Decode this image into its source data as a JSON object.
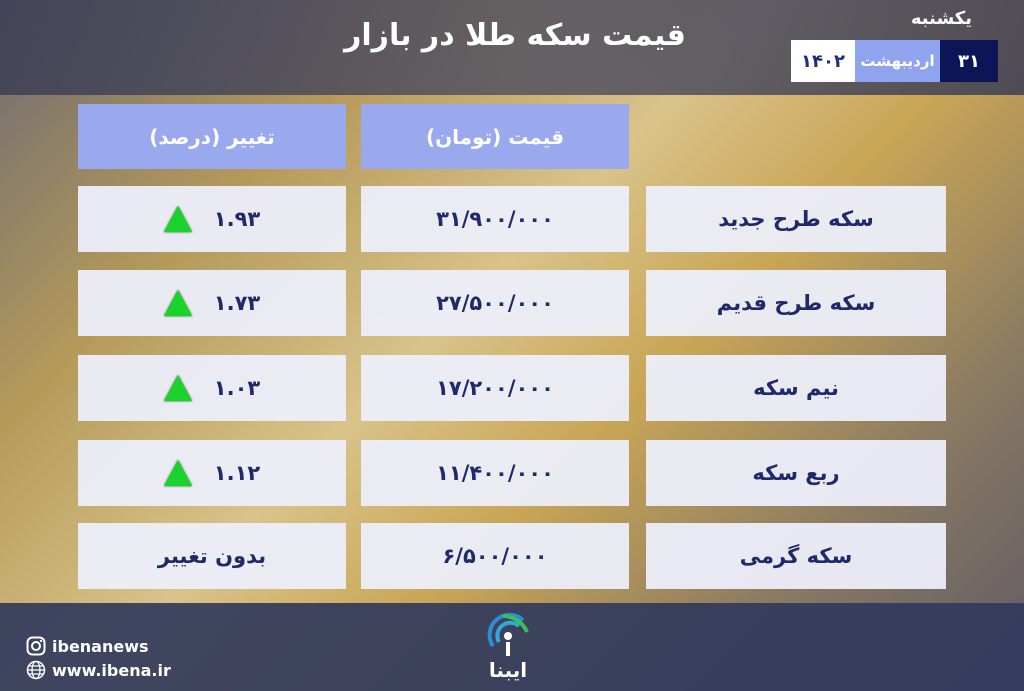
{
  "header": {
    "title": "قیمت سکه طلا در بازار",
    "weekday": "یکشنبه",
    "date": {
      "day": "۳۱",
      "month": "اردیبهشت",
      "year": "۱۴۰۲"
    }
  },
  "table": {
    "columns": {
      "price": "قیمت (تومان)",
      "change": "تغییر (درصد)"
    },
    "rows": [
      {
        "name": "سکه طرح جدید",
        "price": "۳۱/۹۰۰/۰۰۰",
        "change": "۱.۹۳",
        "trend": "up"
      },
      {
        "name": "سکه طرح قدیم",
        "price": "۲۷/۵۰۰/۰۰۰",
        "change": "۱.۷۳",
        "trend": "up"
      },
      {
        "name": "نیم سکه",
        "price": "۱۷/۲۰۰/۰۰۰",
        "change": "۱.۰۳",
        "trend": "up"
      },
      {
        "name": "ربع سکه",
        "price": "۱۱/۴۰۰/۰۰۰",
        "change": "۱.۱۲",
        "trend": "up"
      },
      {
        "name": "سکه گرمی",
        "price": "۶/۵۰۰/۰۰۰",
        "change": "بدون تغییر",
        "trend": "none"
      }
    ]
  },
  "footer": {
    "instagram": "ibenanews",
    "website": "www.ibena.ir",
    "logo_text": "ایبنا"
  },
  "colors": {
    "header_cell": "#9aa8ee",
    "text": "#1f2a6b",
    "up_arrow": "#19d22a"
  }
}
